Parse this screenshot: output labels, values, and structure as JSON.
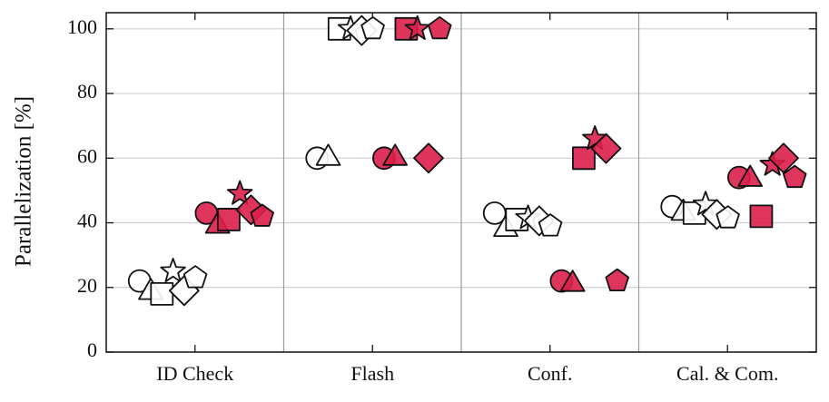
{
  "chart_data": {
    "type": "scatter",
    "y_label": "Parallelization [%]",
    "categories": [
      "ID Check",
      "Flash",
      "Conf.",
      "Cal. & Com."
    ],
    "ylim": [
      0,
      105
    ],
    "yticks": [
      0,
      20,
      40,
      60,
      80,
      100
    ],
    "grid": true,
    "series": [
      {
        "marker": "circle",
        "color": "#ffffff",
        "values": [
          22,
          60,
          43,
          45
        ]
      },
      {
        "marker": "triangle",
        "color": "#ffffff",
        "values": [
          18.5,
          60,
          38,
          43
        ]
      },
      {
        "marker": "square",
        "color": "#ffffff",
        "values": [
          18,
          100,
          41,
          43
        ]
      },
      {
        "marker": "star",
        "color": "#ffffff",
        "values": [
          25,
          100,
          41.5,
          45.7
        ]
      },
      {
        "marker": "diamond",
        "color": "#ffffff",
        "values": [
          19,
          99.5,
          40.6,
          42.6
        ]
      },
      {
        "marker": "pentagon",
        "color": "#ffffff",
        "values": [
          23,
          100,
          39,
          41.5
        ]
      },
      {
        "marker": "circle",
        "color": "#dc1f4b",
        "values": [
          43,
          60,
          22,
          54
        ]
      },
      {
        "marker": "triangle",
        "color": "#dc1f4b",
        "values": [
          39,
          60,
          21,
          53.5
        ]
      },
      {
        "marker": "square",
        "color": "#dc1f4b",
        "values": [
          41,
          100,
          60,
          42
        ]
      },
      {
        "marker": "star",
        "color": "#dc1f4b",
        "values": [
          49,
          100,
          66,
          58
        ]
      },
      {
        "marker": "diamond",
        "color": "#dc1f4b",
        "values": [
          44,
          60,
          63,
          60
        ]
      },
      {
        "marker": "pentagon",
        "color": "#dc1f4b",
        "values": [
          42,
          100,
          22,
          54
        ]
      }
    ]
  }
}
